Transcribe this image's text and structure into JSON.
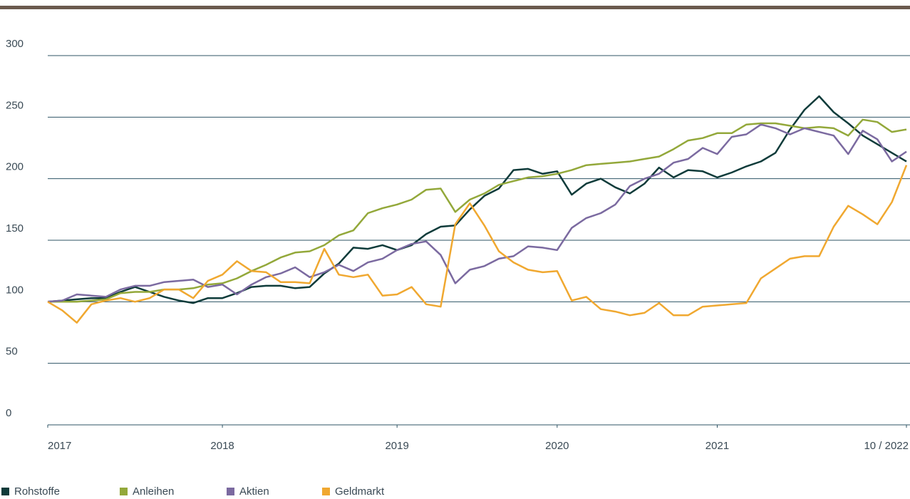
{
  "chart_data": {
    "type": "line",
    "x": [
      0,
      1,
      2,
      3,
      4,
      5,
      6,
      7,
      8,
      9,
      10,
      11,
      12,
      13,
      14,
      15,
      16,
      17,
      18,
      19,
      20,
      21,
      22,
      23,
      24,
      25,
      26,
      27,
      28,
      29,
      30,
      31,
      32,
      33,
      34,
      35,
      36,
      37,
      38,
      39,
      40,
      41,
      42,
      43,
      44,
      45,
      46,
      47,
      48,
      49,
      50,
      51,
      52,
      53,
      54,
      55,
      56,
      57,
      58,
      59
    ],
    "xlim": [
      0,
      59
    ],
    "xticks": [
      {
        "value": 0,
        "label": "2017"
      },
      {
        "value": 12,
        "label": "2018"
      },
      {
        "value": 24,
        "label": "2019"
      },
      {
        "value": 35,
        "label": "2020"
      },
      {
        "value": 46,
        "label": "2021"
      },
      {
        "value": 59,
        "label": "10 / 2022"
      }
    ],
    "ylim": [
      0,
      300
    ],
    "yticks": [
      0,
      50,
      100,
      150,
      200,
      250,
      300
    ],
    "grid": true,
    "legend": "bottom",
    "series": [
      {
        "name": "Rohstoffe",
        "color": "#0e3b3a",
        "values": [
          100,
          101,
          102,
          103,
          103,
          108,
          112,
          108,
          104,
          101,
          99,
          103,
          103,
          107,
          112,
          113,
          113,
          111,
          112,
          123,
          131,
          144,
          143,
          146,
          142,
          146,
          155,
          161,
          162,
          175,
          186,
          192,
          207,
          208,
          204,
          206,
          187,
          196,
          200,
          193,
          188,
          196,
          209,
          201,
          207,
          206,
          201,
          205,
          210,
          214,
          221,
          240,
          256,
          267,
          254,
          245,
          235,
          228,
          221,
          214
        ]
      },
      {
        "name": "Anleihen",
        "color": "#93a83a",
        "values": [
          100,
          100,
          100,
          101,
          102,
          107,
          108,
          108,
          110,
          110,
          111,
          114,
          115,
          119,
          125,
          130,
          136,
          140,
          141,
          146,
          154,
          158,
          172,
          176,
          179,
          183,
          191,
          192,
          173,
          183,
          188,
          195,
          198,
          201,
          202,
          204,
          207,
          211,
          212,
          213,
          214,
          216,
          218,
          224,
          231,
          233,
          237,
          237,
          244,
          245,
          245,
          243,
          241,
          242,
          241,
          235,
          248,
          246,
          238,
          240
        ]
      },
      {
        "name": "Aktien",
        "color": "#7b6aa0",
        "values": [
          100,
          101,
          106,
          105,
          104,
          110,
          113,
          113,
          116,
          117,
          118,
          112,
          114,
          106,
          114,
          120,
          123,
          128,
          120,
          124,
          130,
          125,
          132,
          135,
          142,
          147,
          149,
          138,
          115,
          126,
          129,
          135,
          137,
          145,
          144,
          142,
          160,
          168,
          172,
          179,
          194,
          200,
          204,
          213,
          216,
          225,
          220,
          234,
          236,
          244,
          241,
          236,
          241,
          238,
          235,
          220,
          239,
          232,
          214,
          222
        ]
      },
      {
        "name": "Geldmarkt",
        "color": "#f0a830",
        "values": [
          100,
          93,
          83,
          98,
          101,
          103,
          100,
          103,
          110,
          110,
          103,
          117,
          122,
          133,
          125,
          124,
          116,
          116,
          115,
          143,
          122,
          120,
          122,
          105,
          106,
          112,
          98,
          96,
          163,
          180,
          162,
          141,
          132,
          126,
          124,
          125,
          101,
          104,
          94,
          92,
          89,
          91,
          99,
          89,
          89,
          96,
          97,
          98,
          99,
          119,
          127,
          135,
          137,
          137,
          161,
          178,
          171,
          163,
          181,
          211
        ]
      }
    ]
  }
}
